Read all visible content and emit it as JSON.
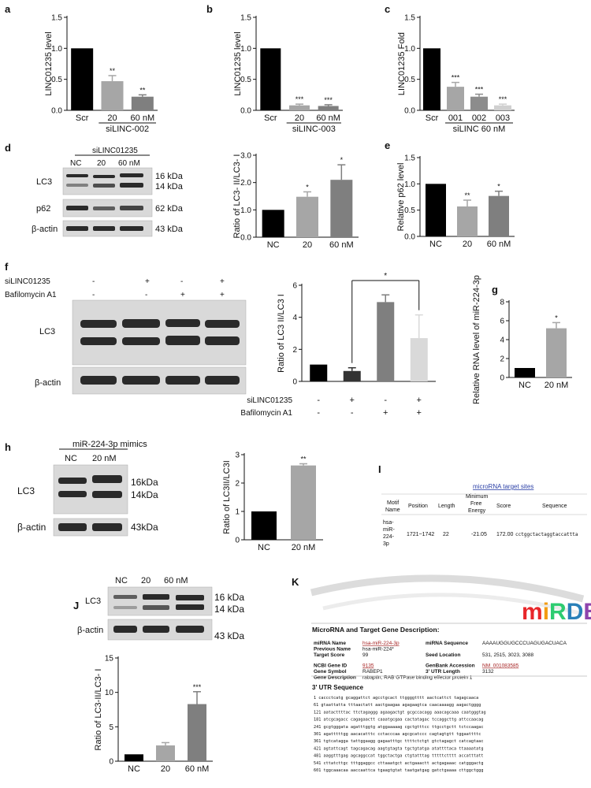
{
  "panels": {
    "a": "a",
    "b": "b",
    "c": "c",
    "d": "d",
    "e": "e",
    "f": "f",
    "g": "g",
    "h": "h",
    "i": "I",
    "j": "J",
    "k": "K"
  },
  "chart_data": [
    {
      "id": "a",
      "type": "bar",
      "categories": [
        "Scr",
        "20",
        "60 nM"
      ],
      "values": [
        1.0,
        0.47,
        0.22
      ],
      "errors": [
        0,
        0.09,
        0.03
      ],
      "stars": [
        "",
        "**",
        "**"
      ],
      "colors": [
        "#000000",
        "#a6a6a6",
        "#7f7f7f"
      ],
      "ylabel": "LINC01235 level",
      "ylim": [
        0,
        1.5
      ],
      "yticks": [
        "0.0",
        "0.5",
        "1.0",
        "1.5"
      ],
      "group_label": "siLINC-002"
    },
    {
      "id": "b",
      "type": "bar",
      "categories": [
        "Scr",
        "20",
        "60 nM"
      ],
      "values": [
        1.0,
        0.08,
        0.07
      ],
      "errors": [
        0,
        0.02,
        0.02
      ],
      "stars": [
        "",
        "***",
        "***"
      ],
      "colors": [
        "#000000",
        "#a6a6a6",
        "#7f7f7f"
      ],
      "ylabel": "LINC01235 level",
      "ylim": [
        0,
        1.5
      ],
      "yticks": [
        "0.0",
        "0.5",
        "1.0",
        "1.5"
      ],
      "group_label": "siLINC-003"
    },
    {
      "id": "c",
      "type": "bar",
      "categories": [
        "Scr",
        "001",
        "002",
        "003"
      ],
      "values": [
        1.0,
        0.38,
        0.22,
        0.08
      ],
      "errors": [
        0,
        0.07,
        0.04,
        0.02
      ],
      "stars": [
        "",
        "***",
        "***",
        "***"
      ],
      "colors": [
        "#000000",
        "#a6a6a6",
        "#8c8c8c",
        "#d0d0d0"
      ],
      "ylabel": "LINC01235 Fold",
      "ylim": [
        0,
        1.5
      ],
      "yticks": [
        "0.0",
        "0.5",
        "1.0",
        "1.5"
      ],
      "group_label": "siLINC  60 nM"
    },
    {
      "id": "d",
      "type": "bar",
      "categories": [
        "NC",
        "20",
        "60 nM"
      ],
      "values": [
        1.0,
        1.48,
        2.1
      ],
      "errors": [
        0,
        0.18,
        0.55
      ],
      "stars": [
        "",
        "*",
        "*"
      ],
      "colors": [
        "#000000",
        "#a6a6a6",
        "#7f7f7f"
      ],
      "ylabel": "Ratio of LC3- II/LC3- I",
      "ylim": [
        0,
        3.0
      ],
      "yticks": [
        "0.0",
        "1.0",
        "2.0",
        "3.0"
      ]
    },
    {
      "id": "e",
      "type": "bar",
      "categories": [
        "NC",
        "20",
        "60 nM"
      ],
      "values": [
        1.0,
        0.57,
        0.77
      ],
      "errors": [
        0,
        0.12,
        0.09
      ],
      "stars": [
        "",
        "**",
        "*"
      ],
      "colors": [
        "#000000",
        "#a6a6a6",
        "#7f7f7f"
      ],
      "ylabel": "Relative p62 level",
      "ylim": [
        0,
        1.5
      ],
      "yticks": [
        "0.0",
        "0.5",
        "1.0",
        "1.5"
      ]
    },
    {
      "id": "f",
      "type": "bar",
      "categories": [
        "1",
        "2",
        "3",
        "4"
      ],
      "values": [
        1.05,
        0.65,
        4.95,
        2.7
      ],
      "errors": [
        0,
        0.2,
        0.45,
        1.45
      ],
      "stars": [
        "",
        "",
        "",
        ""
      ],
      "colors": [
        "#000000",
        "#333333",
        "#7f7f7f",
        "#d9d9d9"
      ],
      "ylabel": "Ratio of LC3 II/LC3 I",
      "ylim": [
        0,
        6
      ],
      "yticks": [
        "0",
        "2",
        "4",
        "6"
      ],
      "sig": "*",
      "sig_between": [
        1,
        3
      ],
      "row1_label": "siLINC01235",
      "row2_label": "Bafilomycin A1",
      "row1": [
        "-",
        "+",
        "-",
        "+"
      ],
      "row2": [
        "-",
        "-",
        "+",
        "+"
      ]
    },
    {
      "id": "g",
      "type": "bar",
      "categories": [
        "NC",
        "20 nM"
      ],
      "values": [
        1.0,
        5.2
      ],
      "errors": [
        0,
        0.6
      ],
      "stars": [
        "",
        "*"
      ],
      "colors": [
        "#000000",
        "#a6a6a6"
      ],
      "ylabel": "Relative RNA level of miR-224-3p",
      "ylim": [
        0,
        8
      ],
      "yticks": [
        "0",
        "2",
        "4",
        "6",
        "8"
      ]
    },
    {
      "id": "h",
      "type": "bar",
      "categories": [
        "NC",
        "20 nM"
      ],
      "values": [
        1.0,
        2.62
      ],
      "errors": [
        0,
        0.06
      ],
      "stars": [
        "",
        "**"
      ],
      "colors": [
        "#000000",
        "#a6a6a6"
      ],
      "ylabel": "Ratio of LC3II/LC3I",
      "ylim": [
        0,
        3
      ],
      "yticks": [
        "0",
        "1",
        "2",
        "3"
      ]
    },
    {
      "id": "j",
      "type": "bar",
      "categories": [
        "NC",
        "20",
        "60 nM"
      ],
      "values": [
        1.0,
        2.3,
        8.3
      ],
      "errors": [
        0,
        0.4,
        1.8
      ],
      "stars": [
        "",
        "",
        "***"
      ],
      "colors": [
        "#000000",
        "#a6a6a6",
        "#7f7f7f"
      ],
      "ylabel": "Ratio of LC3-II/LC3- I",
      "ylim": [
        0,
        15
      ],
      "yticks": [
        "0",
        "5",
        "10",
        "15"
      ]
    }
  ],
  "blots": {
    "d": {
      "header": "siLINC01235",
      "lanes": [
        "NC",
        "20",
        "60 nM"
      ],
      "rows": [
        "LC3",
        "p62",
        "β-actin"
      ],
      "sizes": [
        "16 kDa",
        "14 kDa",
        "62 kDa",
        "43 kDa"
      ]
    },
    "f": {
      "row1_label": "siLINC01235",
      "row2_label": "Bafilomycin A1",
      "row1": [
        "-",
        "+",
        "-",
        "+"
      ],
      "row2": [
        "-",
        "-",
        "+",
        "+"
      ],
      "rows": [
        "LC3",
        "β-actin"
      ]
    },
    "h": {
      "header": "miR-224-3p mimics",
      "lanes": [
        "NC",
        "20 nM"
      ],
      "rows": [
        "LC3",
        "β-actin"
      ],
      "sizes": [
        "16kDa",
        "14kDa",
        "43kDa"
      ]
    },
    "j": {
      "lanes": [
        "NC",
        "20",
        "60 nM"
      ],
      "rows": [
        "LC3",
        "β-actin"
      ],
      "sizes": [
        "16 kDa",
        "14 kDa",
        "43 kDa"
      ]
    }
  },
  "target_table": {
    "link": "microRNA target sites",
    "headers": [
      "Motif Name",
      "Position",
      "Length",
      "Minimum Free Energy",
      "Score",
      "Sequence"
    ],
    "row": [
      "hsa-miR-224-3p",
      "1721~1742",
      "22",
      "-21.05",
      "172.00",
      "cctggctactaggtaccattta"
    ]
  },
  "mirdb": {
    "logo": "miRDB",
    "section_title": "MicroRNA and Target Gene Description:",
    "fields": [
      {
        "k": "miRNA Name",
        "v": "hsa-miR-224-3p",
        "k2": "miRNA Sequence",
        "v2": "AAAAUGGUGCCCUAGUGACUACA"
      },
      {
        "k": "Previous Name",
        "v": "hsa-miR-224*",
        "k2": "",
        "v2": ""
      },
      {
        "k": "Target Score",
        "v": "99",
        "k2": "Seed Location",
        "v2": "531, 2515, 3023, 3088"
      },
      {
        "k": "NCBI Gene ID",
        "v": "9135",
        "k2": "GenBank Accession",
        "v2": "NM_001083585"
      },
      {
        "k": "Gene Symbol",
        "v": "RABEP1",
        "k2": "3' UTR Length",
        "v2": "3132"
      },
      {
        "k": "Gene Description",
        "v": "rabaptin, RAB GTPase binding effector protein 1",
        "k2": "",
        "v2": ""
      }
    ],
    "utr_title": "3' UTR Sequence",
    "utr_lines": [
      "1  caccctcatg gcaggattct agcctgcact ttggggtttt aactcattct tagagcaaca",
      "61  gtaattatta tttaactatt aactgaagaa agagaagtca caacaaaagg aagactgggg",
      "121  aatacttttac ttctagaggg agaagactgt gcgccacagg aaacagcaaa caatgggtag",
      "181  atcgcagacc cagagaactt caaatgcgaa cactatagac tccaggcttg attccaacag",
      "241  gcgtgggata agatttggtg atggaaaaag cgctgtttcc ttgcctgctt tctccaagac",
      "301  agatttttgg aacacatttc cctacccaa agcgcatccc cagtagtgtt tggaattttc",
      "361  tgtcatagga tattggaagg gagaatttgc ttttctctgt gtctagagct catcagtaac",
      "421  agtattcagt tagcagacag aagtgtagta tgctgtatga atattttaca ttaaaatatg",
      "481  aaggtttgag agcaggccat tggctactga ctgtatttag tttttctttt accatttatt",
      "541  cttatcttgc tttggaggcc cttaaatgct actgaaactt actgagaaac catgggactg",
      "601  tggcaaacaa aaccaattca tgaagtgtat taatgatgag gatctgaaaa cttggctggg"
    ]
  }
}
